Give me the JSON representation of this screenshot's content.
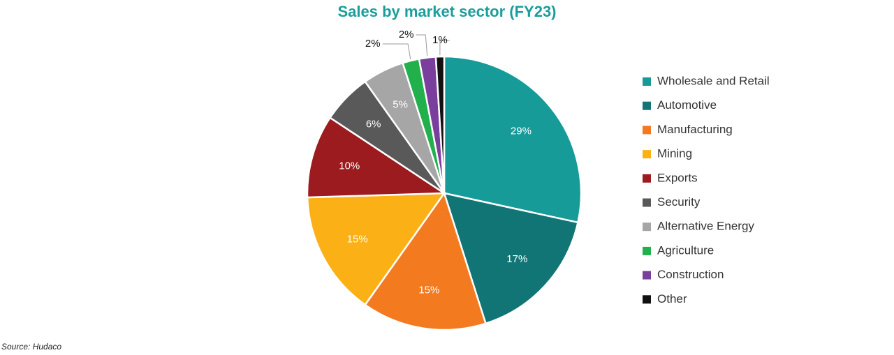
{
  "chart_data": {
    "type": "pie",
    "title": "Sales by market sector (FY23)",
    "categories": [
      "Wholesale and Retail",
      "Automotive",
      "Manufacturing",
      "Mining",
      "Exports",
      "Security",
      "Alternative Energy",
      "Agriculture",
      "Construction",
      "Other"
    ],
    "values": [
      29,
      17,
      15,
      15,
      10,
      6,
      5,
      2,
      2,
      1
    ],
    "value_labels": [
      "29%",
      "17%",
      "15%",
      "15%",
      "10%",
      "6%",
      "5%",
      "2%",
      "2%",
      "1%"
    ],
    "colors": [
      "#169b98",
      "#117575",
      "#f47a20",
      "#fbb116",
      "#9b1b1f",
      "#595959",
      "#a6a6a6",
      "#21b04b",
      "#7a3f9d",
      "#111111"
    ],
    "legend": "right"
  },
  "source": "Source: Hudaco"
}
